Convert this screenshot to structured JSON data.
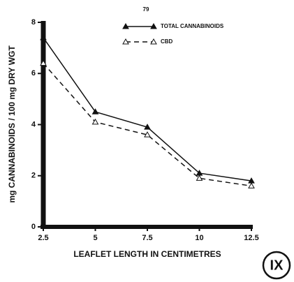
{
  "chart_data": {
    "type": "line",
    "page_number": "79",
    "annotation": "IX",
    "xlabel": "LEAFLET LENGTH IN CENTIMETRES",
    "ylabel": "mg CANNABINOIDS / 100 mg DRY WGT",
    "x": [
      2.5,
      5,
      7.5,
      10,
      12.5
    ],
    "series": [
      {
        "name": "TOTAL CANNABINOIDS",
        "color": "#111111",
        "style": "solid",
        "marker": "filled",
        "values": [
          7.4,
          4.5,
          3.9,
          2.1,
          1.8
        ]
      },
      {
        "name": "CBD",
        "color": "#111111",
        "style": "dashed",
        "marker": "open",
        "values": [
          6.4,
          4.1,
          3.6,
          1.9,
          1.6
        ]
      }
    ],
    "xlim": [
      2.5,
      12.5
    ],
    "xticks": [
      2.5,
      5,
      7.5,
      10,
      12.5
    ],
    "ylim": [
      0,
      8
    ],
    "yticks": [
      0,
      2,
      4,
      6,
      8
    ],
    "grid": false
  }
}
